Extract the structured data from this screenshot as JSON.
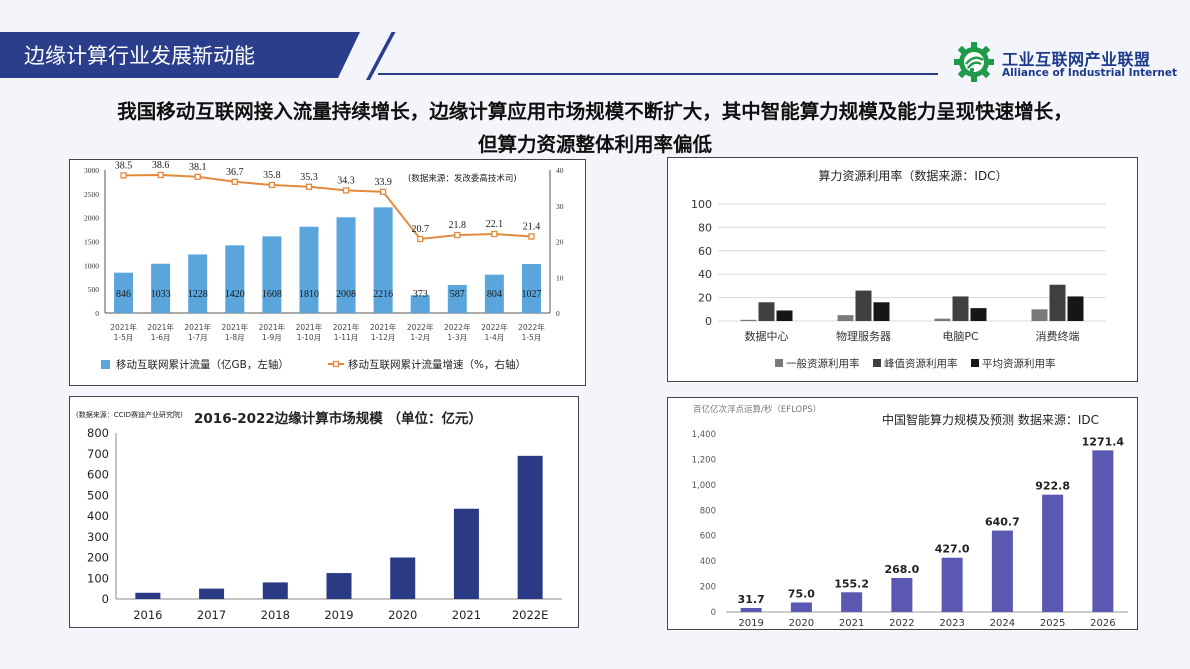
{
  "header": {
    "title": "边缘计算行业发展新动能",
    "logo_cn": "工业互联网产业联盟",
    "logo_en": "Alliance of Industrial Internet"
  },
  "headline": {
    "line1": "我国移动互联网接入流量持续增长，边缘计算应用市场规模不断扩大，其中智能算力规模及能力呈现快速增长，",
    "line2": "但算力资源整体利用率偏低"
  },
  "colors": {
    "brand": "#2a3e8c",
    "bar_blue": "#5aa6dc",
    "line_orange": "#e3893b",
    "navy_bar": "#2b3a85",
    "purple_bar": "#5a58b0"
  },
  "chart_data": [
    {
      "type": "bar",
      "title": "",
      "source_note": "(数据来源：发改委高技术司)",
      "categories": [
        "2021年 1-5月",
        "2021年 1-6月",
        "2021年 1-7月",
        "2021年 1-8月",
        "2021年 1-9月",
        "2021年 1-10月",
        "2021年 1-11月",
        "2021年 1-12月",
        "2022年 1-2月",
        "2022年 1-3月",
        "2022年 1-4月",
        "2022年 1-5月"
      ],
      "cat_lines": [
        [
          "2021年",
          "1-5月"
        ],
        [
          "2021年",
          "1-6月"
        ],
        [
          "2021年",
          "1-7月"
        ],
        [
          "2021年",
          "1-8月"
        ],
        [
          "2021年",
          "1-9月"
        ],
        [
          "2021年",
          "1-10月"
        ],
        [
          "2021年",
          "1-11月"
        ],
        [
          "2021年",
          "1-12月"
        ],
        [
          "2022年",
          "1-2月"
        ],
        [
          "2022年",
          "1-3月"
        ],
        [
          "2022年",
          "1-4月"
        ],
        [
          "2022年",
          "1-5月"
        ]
      ],
      "series": [
        {
          "name": "移动互联网累计流量（亿GB，左轴）",
          "kind": "bar",
          "values": [
            846,
            1033,
            1228,
            1420,
            1608,
            1810,
            2008,
            2216,
            373,
            587,
            804,
            1027
          ]
        },
        {
          "name": "移动互联网累计流量增速（%，右轴）",
          "kind": "line",
          "values": [
            38.5,
            38.6,
            38.1,
            36.7,
            35.8,
            35.3,
            34.3,
            33.9,
            20.7,
            21.8,
            22.1,
            21.4
          ]
        }
      ],
      "ylim_left": [
        0,
        3000
      ],
      "yticks_left": [
        0,
        500,
        1000,
        1500,
        2000,
        2500,
        3000
      ],
      "ylim_right": [
        0,
        40
      ],
      "yticks_right": [
        0,
        10,
        20,
        30,
        40
      ]
    },
    {
      "type": "bar",
      "title": "算力资源利用率（数据来源：IDC）",
      "categories": [
        "数据中心",
        "物理服务器",
        "电脑PC",
        "消费终端"
      ],
      "series": [
        {
          "name": "一般资源利用率",
          "values": [
            1,
            5,
            2,
            10
          ]
        },
        {
          "name": "峰值资源利用率",
          "values": [
            16,
            26,
            21,
            31
          ]
        },
        {
          "name": "平均资源利用率",
          "values": [
            9,
            16,
            11,
            21
          ]
        }
      ],
      "ylim": [
        0,
        100
      ],
      "yticks": [
        0,
        20,
        40,
        60,
        80,
        100
      ]
    },
    {
      "type": "bar",
      "title": "2016-2022边缘计算市场规模 （单位：亿元）",
      "source_note": "(数据来源：CCID赛迪产业研究院)",
      "categories": [
        "2016",
        "2017",
        "2018",
        "2019",
        "2020",
        "2021",
        "2022E"
      ],
      "values": [
        30,
        50,
        80,
        125,
        200,
        435,
        690
      ],
      "ylim": [
        0,
        800
      ],
      "yticks": [
        0,
        100,
        200,
        300,
        400,
        500,
        600,
        700,
        800
      ]
    },
    {
      "type": "bar",
      "title": "中国智能算力规模及预测  数据来源：IDC",
      "unit_label": "百亿亿次浮点运算/秒（EFLOPS）",
      "categories": [
        "2019",
        "2020",
        "2021",
        "2022",
        "2023",
        "2024",
        "2025",
        "2026"
      ],
      "values": [
        31.7,
        75.0,
        155.2,
        268.0,
        427.0,
        640.7,
        922.8,
        1271.4
      ],
      "value_labels": [
        "31.7",
        "75.0",
        "155.2",
        "268.0",
        "427.0",
        "640.7",
        "922.8",
        "1271.4"
      ],
      "ylim": [
        0,
        1400
      ],
      "yticks": [
        0,
        200,
        400,
        600,
        800,
        1000,
        1200,
        1400
      ],
      "ytick_labels": [
        "0",
        "200",
        "400",
        "600",
        "800",
        "1,000",
        "1,200",
        "1,400"
      ]
    }
  ]
}
